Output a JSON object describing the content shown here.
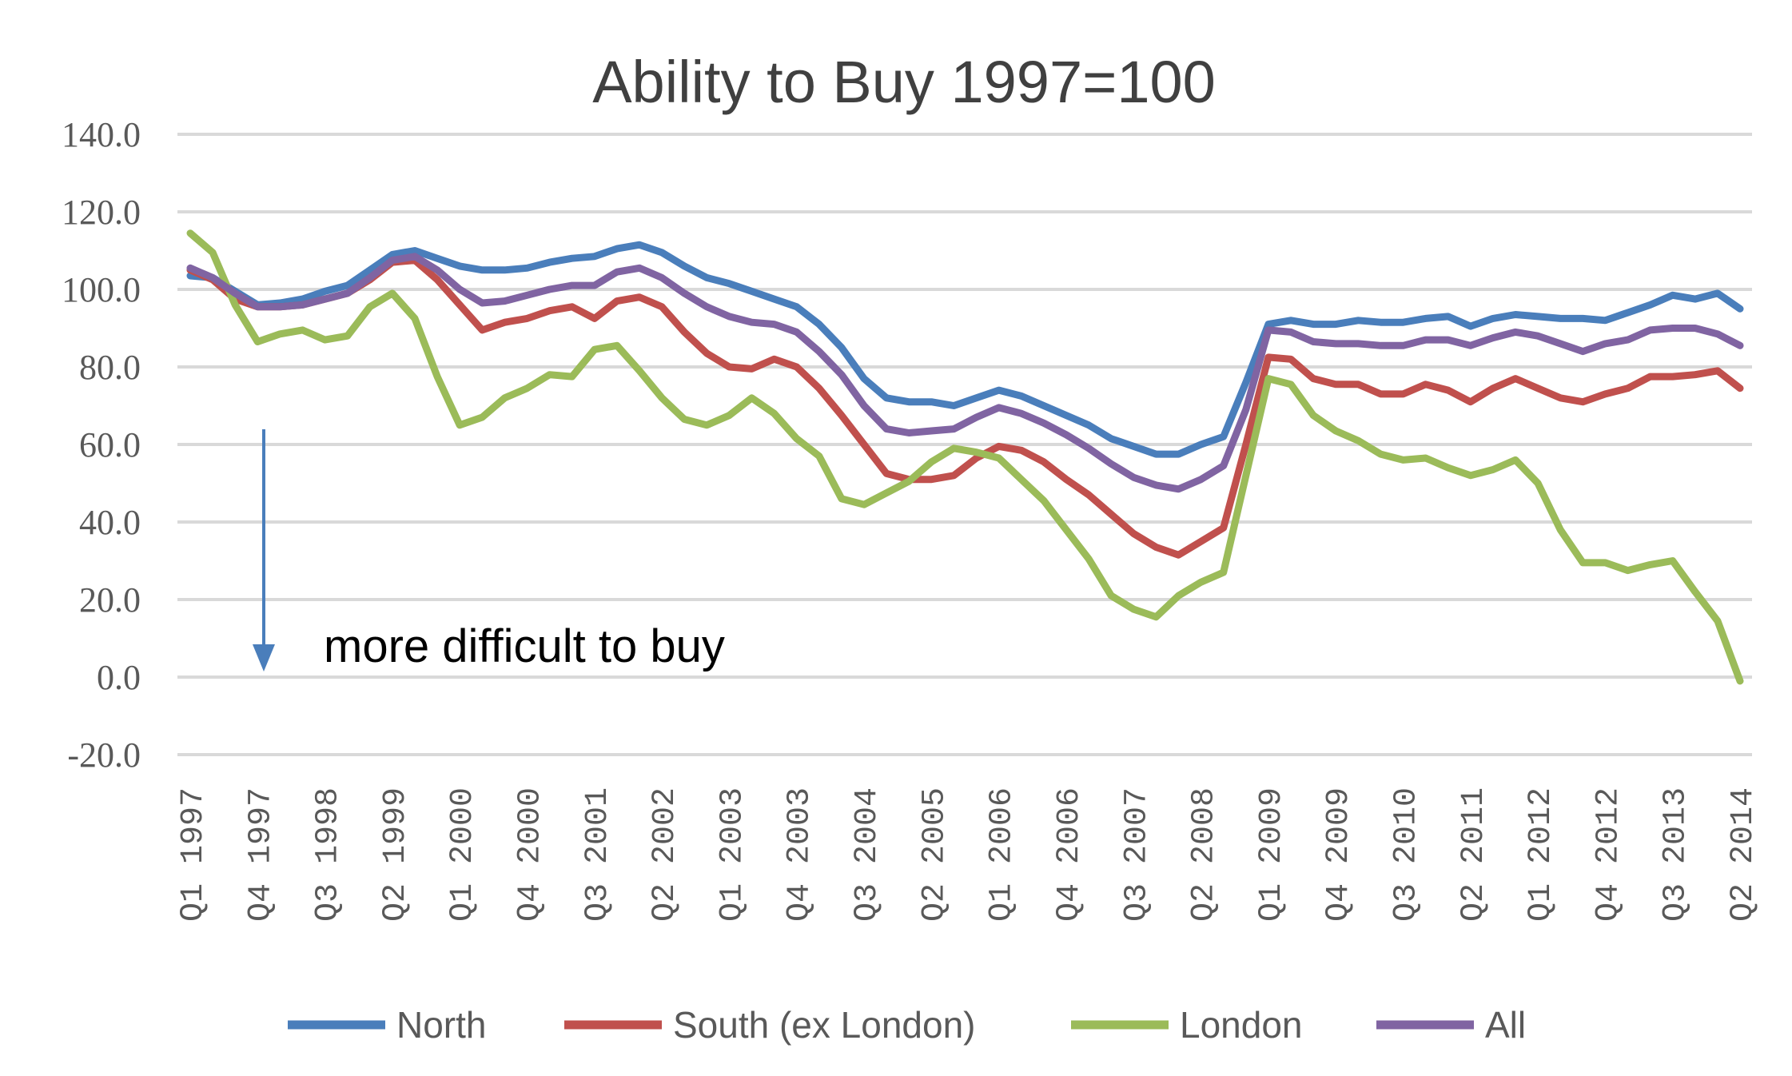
{
  "chart_data": {
    "type": "line",
    "title": "Ability to Buy  1997=100",
    "xlabel": "",
    "ylabel": "",
    "ylim": [
      -20,
      140
    ],
    "yticks": [
      140,
      120,
      100,
      80,
      60,
      40,
      20,
      0,
      -20
    ],
    "ytick_labels": [
      "140.0",
      "120.0",
      "100.0",
      "80.0",
      "60.0",
      "40.0",
      "20.0",
      "0.0",
      "-20.0"
    ],
    "grid": true,
    "legend_position": "bottom",
    "x": [
      "Q1 1997",
      "Q2 1997",
      "Q3 1997",
      "Q4 1997",
      "Q1 1998",
      "Q2 1998",
      "Q3 1998",
      "Q4 1998",
      "Q1 1999",
      "Q2 1999",
      "Q3 1999",
      "Q4 1999",
      "Q1 2000",
      "Q2 2000",
      "Q3 2000",
      "Q4 2000",
      "Q1 2001",
      "Q2 2001",
      "Q3 2001",
      "Q4 2001",
      "Q1 2002",
      "Q2 2002",
      "Q3 2002",
      "Q4 2002",
      "Q1 2003",
      "Q2 2003",
      "Q3 2003",
      "Q4 2003",
      "Q1 2004",
      "Q2 2004",
      "Q3 2004",
      "Q4 2004",
      "Q1 2005",
      "Q2 2005",
      "Q3 2005",
      "Q4 2005",
      "Q1 2006",
      "Q2 2006",
      "Q3 2006",
      "Q4 2006",
      "Q1 2007",
      "Q2 2007",
      "Q3 2007",
      "Q4 2007",
      "Q1 2008",
      "Q2 2008",
      "Q3 2008",
      "Q4 2008",
      "Q1 2009",
      "Q2 2009",
      "Q3 2009",
      "Q4 2009",
      "Q1 2010",
      "Q2 2010",
      "Q3 2010",
      "Q4 2010",
      "Q1 2011",
      "Q2 2011",
      "Q3 2011",
      "Q4 2011",
      "Q1 2012",
      "Q2 2012",
      "Q3 2012",
      "Q4 2012",
      "Q1 2013",
      "Q2 2013",
      "Q3 2013",
      "Q4 2013",
      "Q1 2014",
      "Q2 2014"
    ],
    "xtick_labels": [
      "Q1 1997",
      "Q4 1997",
      "Q3 1998",
      "Q2 1999",
      "Q1 2000",
      "Q4 2000",
      "Q3 2001",
      "Q2 2002",
      "Q1 2003",
      "Q4 2003",
      "Q3 2004",
      "Q2 2005",
      "Q1 2006",
      "Q4 2006",
      "Q3 2007",
      "Q2 2008",
      "Q1 2009",
      "Q4 2009",
      "Q3 2010",
      "Q2 2011",
      "Q1 2012",
      "Q4 2012",
      "Q3 2013",
      "Q2 2014"
    ],
    "series": [
      {
        "name": "North",
        "color": "#4a7ebb",
        "values": [
          103.5,
          103,
          99.5,
          96,
          96.5,
          97.5,
          99.5,
          101,
          105,
          109,
          110,
          108,
          106,
          105,
          105,
          105.5,
          107,
          108,
          108.5,
          110.5,
          111.5,
          109.5,
          106,
          103,
          101.5,
          99.5,
          97.5,
          95.5,
          91,
          85,
          77,
          72,
          71,
          71,
          70,
          72,
          74,
          72.5,
          70,
          67.5,
          65,
          61.5,
          59.5,
          57.5,
          57.5,
          60,
          62,
          76,
          91,
          92,
          91,
          91,
          92,
          91.5,
          91.5,
          92.5,
          93,
          90.5,
          92.5,
          93.5,
          93,
          92.5,
          92.5,
          92,
          94,
          96,
          98.5,
          97.5,
          99,
          95
        ]
      },
      {
        "name": "South (ex London)",
        "color": "#c0504d",
        "values": [
          105,
          102.5,
          97.5,
          95.5,
          95.5,
          96,
          97.5,
          99,
          102.5,
          107,
          107.5,
          102.5,
          96,
          89.5,
          91.5,
          92.5,
          94.5,
          95.5,
          92.5,
          97,
          98,
          95.5,
          89,
          83.5,
          80,
          79.5,
          82,
          80,
          74.5,
          67.5,
          60,
          52.5,
          51,
          51,
          52,
          56.5,
          59.5,
          58.5,
          55.5,
          51,
          47,
          42,
          37,
          33.5,
          31.5,
          35,
          38.5,
          60,
          82.5,
          82,
          77,
          75.5,
          75.5,
          73,
          73,
          75.5,
          74,
          71,
          74.5,
          77,
          74.5,
          72,
          71,
          73,
          74.5,
          77.5,
          77.5,
          78,
          79,
          74.5
        ]
      },
      {
        "name": "London",
        "color": "#9bbb59",
        "values": [
          114.5,
          109.5,
          96,
          86.5,
          88.5,
          89.5,
          87,
          88,
          95.5,
          99,
          92.5,
          77.5,
          65,
          67,
          72,
          74.5,
          78,
          77.5,
          84.5,
          85.5,
          79,
          72,
          66.5,
          65,
          67.5,
          72,
          68,
          61.5,
          57,
          46,
          44.5,
          47.5,
          50.5,
          55.5,
          59,
          58,
          56.5,
          51,
          45.5,
          38,
          30.5,
          21,
          17.5,
          15.5,
          21,
          24.5,
          27,
          52,
          77,
          75.5,
          67.5,
          63.5,
          61,
          57.5,
          56,
          56.5,
          54,
          52,
          53.5,
          56,
          50,
          38,
          29.5,
          29.5,
          27.5,
          29,
          30,
          22,
          14.5,
          -1
        ]
      },
      {
        "name": "All",
        "color": "#8064a2",
        "values": [
          105.5,
          103,
          99,
          95.5,
          95.5,
          96,
          97.5,
          99,
          103,
          107.5,
          108.5,
          105,
          100,
          96.5,
          97,
          98.5,
          100,
          101,
          101,
          104.5,
          105.5,
          103,
          99,
          95.5,
          93,
          91.5,
          91,
          89,
          84,
          78,
          70,
          64,
          63,
          63.5,
          64,
          67,
          69.5,
          68,
          65.5,
          62.5,
          59,
          55,
          51.5,
          49.5,
          48.5,
          51,
          54.5,
          69,
          89.5,
          89,
          86.5,
          86,
          86,
          85.5,
          85.5,
          87,
          87,
          85.5,
          87.5,
          89,
          88,
          86,
          84,
          86,
          87,
          89.5,
          90,
          90,
          88.5,
          85.5
        ]
      }
    ],
    "annotation": {
      "text": "more difficult to buy",
      "arrow_direction": "down",
      "arrow_color": "#4a7ebb"
    }
  }
}
